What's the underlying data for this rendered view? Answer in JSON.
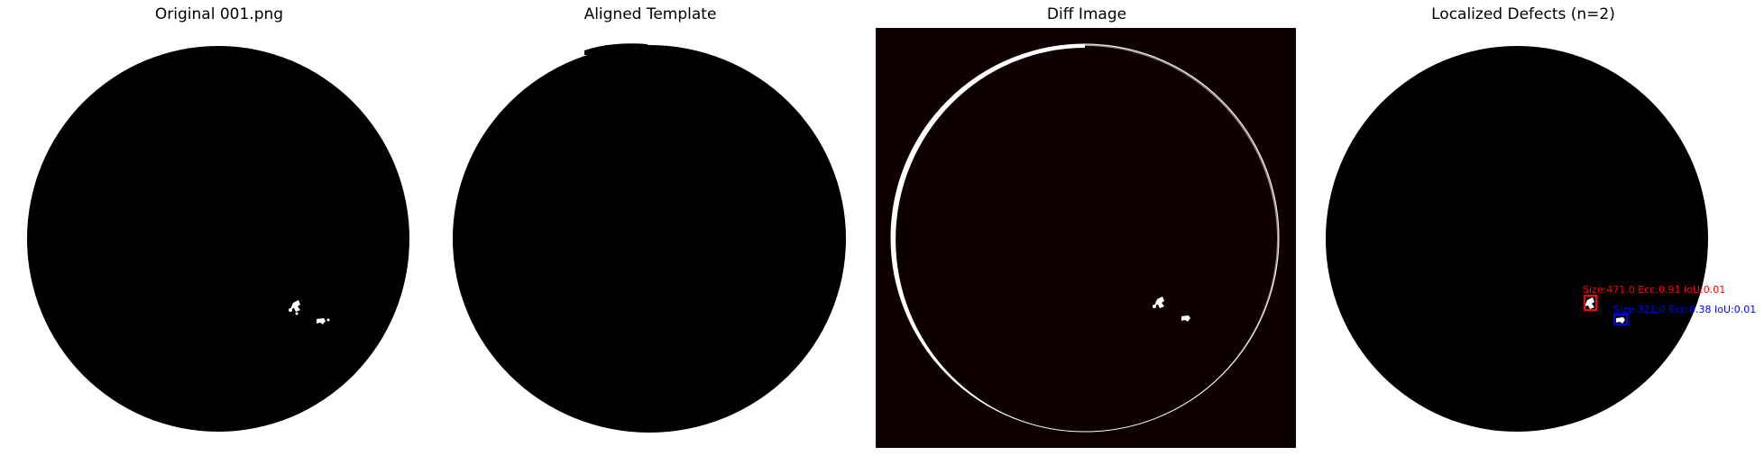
{
  "panels": [
    {
      "title": "Original 001.png"
    },
    {
      "title": "Aligned Template"
    },
    {
      "title": "Diff Image"
    },
    {
      "title": "Localized Defects (n=2)"
    }
  ],
  "colors": {
    "background": "#ffffff",
    "disk": "#000000",
    "diff_background": "#0e0000",
    "defect_white": "#ffffff",
    "box_1": "#ff0000",
    "box_2": "#0000ff"
  },
  "defects": [
    {
      "label": "Size:471.0 Ecc:0.91 IoU:0.01",
      "color": "#ff0000"
    },
    {
      "label": "Size:321.0 Ecc:0.38 IoU:0.01",
      "color": "#0000ff"
    }
  ]
}
